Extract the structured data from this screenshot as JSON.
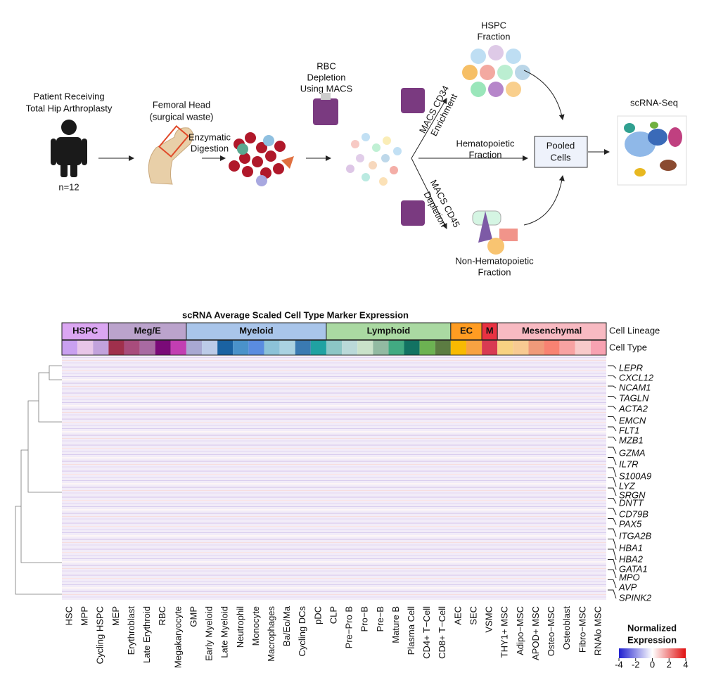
{
  "workflow": {
    "patient": [
      "Patient Receiving",
      "Total Hip Arthroplasty"
    ],
    "n": "n=12",
    "femoral_head": [
      "Femoral Head",
      "(surgical waste)"
    ],
    "digestion": [
      "Enzymatic",
      "Digestion"
    ],
    "rbc": [
      "RBC",
      "Depletion",
      "Using MACS"
    ],
    "hspc": [
      "HSPC",
      "Fraction"
    ],
    "cd34": [
      "MACS CD34",
      "Enrichment"
    ],
    "hematopoietic": [
      "Hematopoietic",
      "Fraction"
    ],
    "cd45": [
      "MACS CD45",
      "Depletion"
    ],
    "non_hematopoietic": [
      "Non-Hematopoietic",
      "Fraction"
    ],
    "pooled": [
      "Pooled",
      "Cells"
    ],
    "scrna": "scRNA-Seq"
  },
  "heatmap": {
    "title": "scRNA Average Scaled Cell Type Marker Expression",
    "lineage_label": "Cell Lineage",
    "type_label": "Cell Type",
    "lineages": [
      {
        "name": "HSPC",
        "color": "#dba6f2",
        "cell_types": [
          {
            "name": "HSC",
            "color": "#c9a0f0"
          },
          {
            "name": "MPP",
            "color": "#e8c6e8"
          },
          {
            "name": "Cycling HSPC",
            "color": "#c2a2dc"
          }
        ]
      },
      {
        "name": "Meg/E",
        "color": "#bba3cc",
        "cell_types": [
          {
            "name": "MEP",
            "color": "#a0304c"
          },
          {
            "name": "Erythroblast",
            "color": "#a84c7c"
          },
          {
            "name": "Late Erythroid",
            "color": "#a86aa2"
          },
          {
            "name": "RBC",
            "color": "#7a0a78"
          },
          {
            "name": "Megakaryocyte",
            "color": "#c23eb2"
          }
        ]
      },
      {
        "name": "Myeloid",
        "color": "#a9c5ea",
        "cell_types": [
          {
            "name": "GMP",
            "color": "#a8a8d2"
          },
          {
            "name": "Early Myeloid",
            "color": "#bccbe8"
          },
          {
            "name": "Late Myeloid",
            "color": "#1a62a2"
          },
          {
            "name": "Neutrophil",
            "color": "#4a92ca"
          },
          {
            "name": "Monocyte",
            "color": "#5a8ce0"
          },
          {
            "name": "Macrophages",
            "color": "#8cc2d8"
          },
          {
            "name": "Ba/Eo/Ma",
            "color": "#aad2e2"
          },
          {
            "name": "Cycling DCs",
            "color": "#3a7ab2"
          },
          {
            "name": "pDC",
            "color": "#20a2a2"
          }
        ]
      },
      {
        "name": "Lymphoid",
        "color": "#aad9a2",
        "cell_types": [
          {
            "name": "CLP",
            "color": "#8cc6c6"
          },
          {
            "name": "Pre−Pro B",
            "color": "#bad9d9"
          },
          {
            "name": "Pro−B",
            "color": "#cae2ca"
          },
          {
            "name": "Pre−B",
            "color": "#92baa2"
          },
          {
            "name": "Mature B",
            "color": "#42aa82"
          },
          {
            "name": "Plasma Cell",
            "color": "#127262"
          },
          {
            "name": "CD4+ T−Cell",
            "color": "#6cb252"
          },
          {
            "name": "CD8+ T−Cell",
            "color": "#5c7c42"
          }
        ]
      },
      {
        "name": "EC",
        "color": "#ff9c22",
        "cell_types": [
          {
            "name": "AEC",
            "color": "#f8ba02"
          },
          {
            "name": "SEC",
            "color": "#f8a242"
          }
        ]
      },
      {
        "name": "M",
        "color": "#e83242",
        "cell_types": [
          {
            "name": "VSMC",
            "color": "#d83a52"
          }
        ]
      },
      {
        "name": "Mesenchymal",
        "color": "#f8bac2",
        "cell_types": [
          {
            "name": "THY1+ MSC",
            "color": "#f8d282"
          },
          {
            "name": "Adipo−MSC",
            "color": "#f8ca92"
          },
          {
            "name": "APOD+ MSC",
            "color": "#f09a7a"
          },
          {
            "name": "Osteo−MSC",
            "color": "#f88272"
          },
          {
            "name": "Osteoblast",
            "color": "#f8a2a2"
          },
          {
            "name": "Fibro−MSC",
            "color": "#f8caca"
          },
          {
            "name": "RNAlo MSC",
            "color": "#f8a2b2"
          }
        ]
      }
    ],
    "genes": [
      {
        "name": "LEPR",
        "color": "#f08cb0"
      },
      {
        "name": "CXCL12",
        "color": "#f08cb0"
      },
      {
        "name": "NCAM1",
        "color": "#f08cb0"
      },
      {
        "name": "TAGLN",
        "color": "#d02050"
      },
      {
        "name": "ACTA2",
        "color": "#d02050"
      },
      {
        "name": "EMCN",
        "color": "#f08010"
      },
      {
        "name": "FLT1",
        "color": "#f08010"
      },
      {
        "name": "MZB1",
        "color": "#70b030"
      },
      {
        "name": "GZMA",
        "color": "#70b030"
      },
      {
        "name": "IL7R",
        "color": "#70b030"
      },
      {
        "name": "S100A9",
        "color": "#2090d0"
      },
      {
        "name": "LYZ",
        "color": "#2090d0"
      },
      {
        "name": "SRGN",
        "color": "#2090d0"
      },
      {
        "name": "DNTT",
        "color": "#70b030"
      },
      {
        "name": "CD79B",
        "color": "#70b030"
      },
      {
        "name": "PAX5",
        "color": "#70b030"
      },
      {
        "name": "ITGA2B",
        "color": "#8030a0"
      },
      {
        "name": "HBA1",
        "color": "#8030a0"
      },
      {
        "name": "HBA2",
        "color": "#8030a0"
      },
      {
        "name": "GATA1",
        "color": "#8030a0"
      },
      {
        "name": "MPO",
        "color": "#2090d0"
      },
      {
        "name": "AVP",
        "color": "#d4a2e4"
      },
      {
        "name": "SPINK2",
        "color": "#d4a2e4"
      }
    ],
    "colorbar": {
      "title": [
        "Normalized",
        "Expression"
      ],
      "lim": [
        -4,
        4
      ],
      "ticks": [
        -4,
        -2,
        0,
        2,
        4
      ],
      "low_color": "#2020d0",
      "mid_color": "#ffffff",
      "high_color": "#e01010"
    }
  }
}
